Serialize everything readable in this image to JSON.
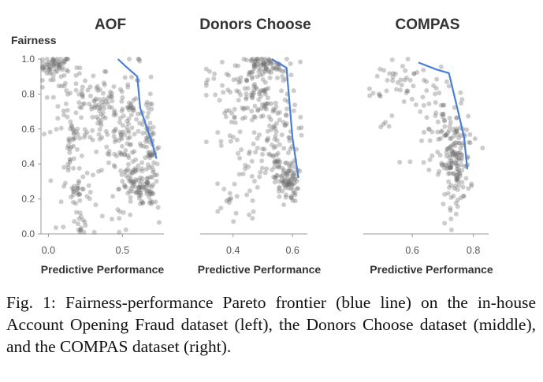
{
  "figure": {
    "y_axis_title": "Fairness",
    "x_axis_title": "Predictive Performance",
    "frontier_color": "#4a7fd6",
    "point_color": "#6e6e6e"
  },
  "chart_data": [
    {
      "type": "scatter",
      "title": "AOF",
      "xlabel": "Predictive Performance",
      "ylabel": "Fairness",
      "xlim": [
        -0.05,
        0.78
      ],
      "ylim": [
        0,
        1.0
      ],
      "xticks": [
        0.0,
        0.5
      ],
      "xtick_labels": [
        "0.0",
        "0.5"
      ],
      "yticks": [
        0.0,
        0.2,
        0.4,
        0.6,
        0.8,
        1.0
      ],
      "ytick_labels": [
        "0.0",
        "0.2",
        "0.4",
        "0.6",
        "0.8",
        "1.0"
      ],
      "pareto_frontier": {
        "x": [
          0.47,
          0.52,
          0.6,
          0.62,
          0.66,
          0.7,
          0.73
        ],
        "y": [
          1.0,
          0.96,
          0.9,
          0.72,
          0.62,
          0.52,
          0.43
        ]
      },
      "point_clusters": [
        {
          "cx": 0.05,
          "cy": 0.96,
          "sx": 0.05,
          "sy": 0.03,
          "n": 55
        },
        {
          "cx": 0.2,
          "cy": 0.75,
          "sx": 0.12,
          "sy": 0.12,
          "n": 70
        },
        {
          "cx": 0.38,
          "cy": 0.7,
          "sx": 0.15,
          "sy": 0.12,
          "n": 60
        },
        {
          "cx": 0.55,
          "cy": 0.55,
          "sx": 0.07,
          "sy": 0.2,
          "n": 110
        },
        {
          "cx": 0.68,
          "cy": 0.45,
          "sx": 0.03,
          "sy": 0.15,
          "n": 60
        },
        {
          "cx": 0.62,
          "cy": 0.26,
          "sx": 0.07,
          "sy": 0.05,
          "n": 70
        },
        {
          "cx": 0.15,
          "cy": 0.45,
          "sx": 0.02,
          "sy": 0.07,
          "n": 22
        },
        {
          "cx": 0.2,
          "cy": 0.25,
          "sx": 0.03,
          "sy": 0.04,
          "n": 22
        },
        {
          "cx": 0.22,
          "cy": 0.08,
          "sx": 0.02,
          "sy": 0.04,
          "n": 14
        },
        {
          "cx": 0.3,
          "cy": 0.45,
          "sx": 0.15,
          "sy": 0.2,
          "n": 45
        }
      ]
    },
    {
      "type": "scatter",
      "title": "Donors Choose",
      "xlabel": "Predictive Performance",
      "ylabel": "Fairness",
      "xlim": [
        0.3,
        0.65
      ],
      "ylim": [
        0,
        1.0
      ],
      "xticks": [
        0.4,
        0.6
      ],
      "xtick_labels": [
        "0.4",
        "0.6"
      ],
      "yticks": [],
      "ytick_labels": [],
      "pareto_frontier": {
        "x": [
          0.53,
          0.55,
          0.58,
          0.6,
          0.62
        ],
        "y": [
          1.0,
          0.98,
          0.95,
          0.55,
          0.32
        ]
      },
      "point_clusters": [
        {
          "cx": 0.5,
          "cy": 0.96,
          "sx": 0.04,
          "sy": 0.03,
          "n": 70
        },
        {
          "cx": 0.48,
          "cy": 0.8,
          "sx": 0.06,
          "sy": 0.1,
          "n": 80
        },
        {
          "cx": 0.54,
          "cy": 0.55,
          "sx": 0.04,
          "sy": 0.15,
          "n": 90
        },
        {
          "cx": 0.58,
          "cy": 0.3,
          "sx": 0.02,
          "sy": 0.06,
          "n": 80
        },
        {
          "cx": 0.45,
          "cy": 0.5,
          "sx": 0.07,
          "sy": 0.2,
          "n": 50
        },
        {
          "cx": 0.4,
          "cy": 0.2,
          "sx": 0.05,
          "sy": 0.08,
          "n": 18
        },
        {
          "cx": 0.33,
          "cy": 0.9,
          "sx": 0.02,
          "sy": 0.04,
          "n": 10
        }
      ]
    },
    {
      "type": "scatter",
      "title": "COMPAS",
      "xlabel": "Predictive Performance",
      "ylabel": "Fairness",
      "xlim": [
        0.45,
        0.85
      ],
      "ylim": [
        0,
        1.0
      ],
      "xticks": [
        0.6,
        0.8
      ],
      "xtick_labels": [
        "0.6",
        "0.8"
      ],
      "yticks": [],
      "ytick_labels": [],
      "pareto_frontier": {
        "x": [
          0.62,
          0.68,
          0.72,
          0.75,
          0.77,
          0.78
        ],
        "y": [
          0.98,
          0.94,
          0.92,
          0.7,
          0.55,
          0.37
        ]
      },
      "point_clusters": [
        {
          "cx": 0.74,
          "cy": 0.4,
          "sx": 0.025,
          "sy": 0.12,
          "n": 140
        },
        {
          "cx": 0.7,
          "cy": 0.62,
          "sx": 0.05,
          "sy": 0.12,
          "n": 60
        },
        {
          "cx": 0.6,
          "cy": 0.85,
          "sx": 0.06,
          "sy": 0.08,
          "n": 35
        },
        {
          "cx": 0.5,
          "cy": 0.85,
          "sx": 0.03,
          "sy": 0.1,
          "n": 15
        }
      ]
    }
  ],
  "caption": "Fig. 1: Fairness-performance Pareto frontier (blue line) on the in-house Account Opening Fraud dataset (left), the Donors Choose dataset (middle), and the COMPAS dataset (right)."
}
